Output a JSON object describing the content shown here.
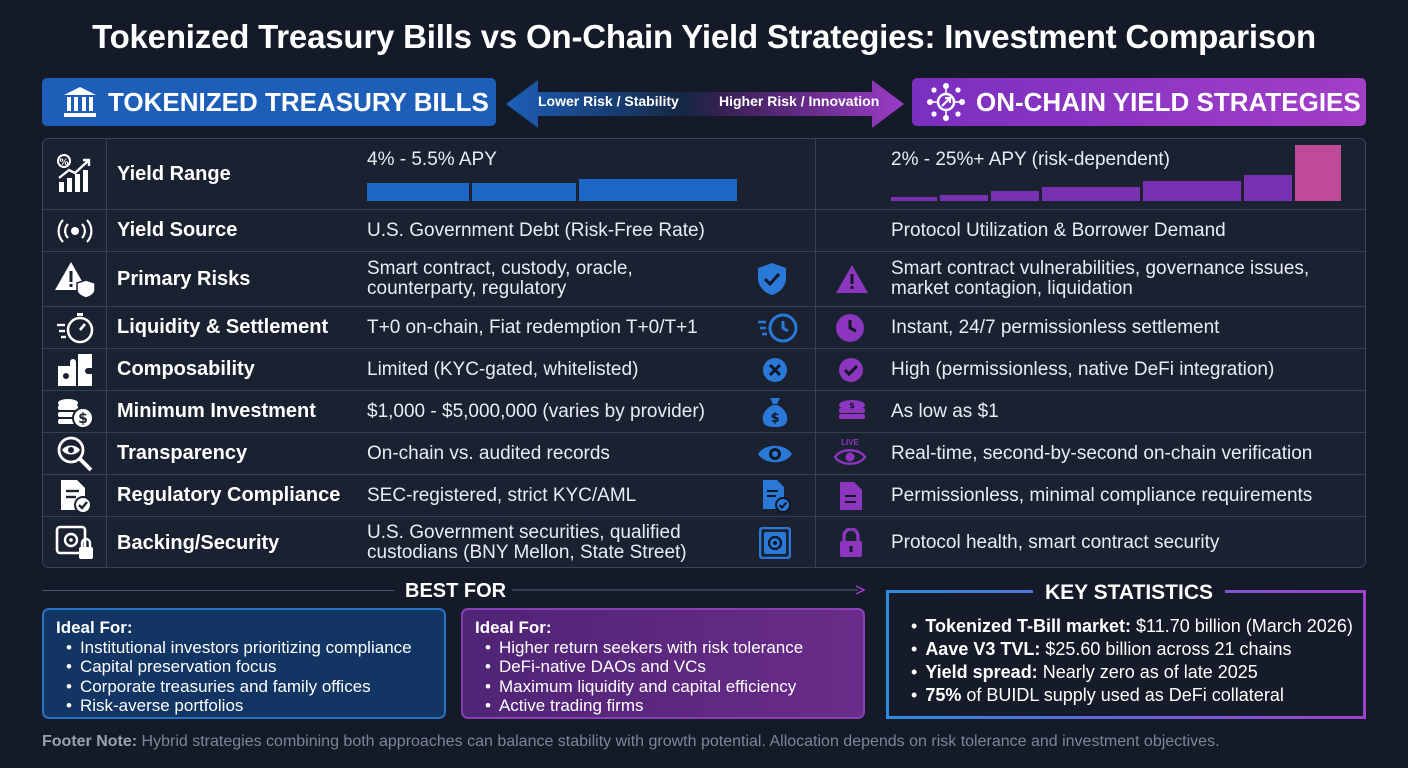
{
  "title": "Tokenized Treasury Bills vs On-Chain Yield Strategies: Investment Comparison",
  "header": {
    "left": "TOKENIZED TREASURY BILLS",
    "right": "ON-CHAIN YIELD STRATEGIES",
    "arrow_left": "Lower Risk / Stability",
    "arrow_right": "Higher Risk / Innovation",
    "left_icon": "bank-icon",
    "right_icon": "network-icon"
  },
  "rows": [
    {
      "label": "Yield Range",
      "icon": "yield-chart-icon",
      "left": "4% - 5.5% APY",
      "right": "2% - 25%+ APY (risk-dependent)"
    },
    {
      "label": "Yield Source",
      "icon": "broadcast-icon",
      "left": "U.S. Government Debt (Risk-Free Rate)",
      "right": "Protocol Utilization & Borrower Demand"
    },
    {
      "label": "Primary Risks",
      "icon": "warning-shield-icon",
      "left": "Smart contract, custody, oracle,",
      "left2": "counterparty, regulatory",
      "right": "Smart contract vulnerabilities, governance issues,",
      "right2": "market contagion, liquidation"
    },
    {
      "label": "Liquidity & Settlement",
      "icon": "stopwatch-icon",
      "left": "T+0 on-chain, Fiat redemption T+0/T+1",
      "right": "Instant, 24/7 permissionless settlement"
    },
    {
      "label": "Composability",
      "icon": "puzzle-icon",
      "left": "Limited (KYC-gated, whitelisted)",
      "right": "High (permissionless, native DeFi integration)"
    },
    {
      "label": "Minimum Investment",
      "icon": "coins-icon",
      "left": "$1,000 - $5,000,000 (varies by provider)",
      "right": "As low as $1"
    },
    {
      "label": "Transparency",
      "icon": "magnifier-eye-icon",
      "left": "On-chain vs. audited records",
      "right": "Real-time, second-by-second on-chain verification",
      "live": "LIVE"
    },
    {
      "label": "Regulatory Compliance",
      "icon": "document-check-icon",
      "left": "SEC-registered, strict KYC/AML",
      "right": "Permissionless, minimal compliance requirements"
    },
    {
      "label": "Backing/Security",
      "icon": "safe-lock-icon",
      "left": "U.S. Government securities, qualified",
      "left2": "custodians (BNY Mellon, State Street)",
      "right": "Protocol health, smart contract security"
    }
  ],
  "yield_bars": {
    "left": [
      1,
      2,
      3
    ],
    "right": [
      1,
      2,
      3,
      4,
      5,
      6,
      7,
      8
    ]
  },
  "best_for": {
    "title": "BEST FOR",
    "left_heading": "Ideal For:",
    "left_items": [
      "Institutional investors prioritizing compliance",
      "Capital preservation focus",
      "Corporate treasuries and family offices",
      "Risk-averse portfolios"
    ],
    "right_heading": "Ideal For:",
    "right_items": [
      "Higher return seekers with risk tolerance",
      "DeFi-native DAOs and VCs",
      "Maximum liquidity and capital efficiency",
      "Active trading firms"
    ]
  },
  "key_stats": {
    "title": "KEY STATISTICS",
    "items": [
      {
        "bold": "Tokenized T-Bill market:",
        "text": " $11.70 billion (March 2026)"
      },
      {
        "bold": "Aave V3 TVL:",
        "text": " $25.60 billion across 21 chains"
      },
      {
        "bold": "Yield spread:",
        "text": " Nearly zero as of late 2025"
      },
      {
        "bold": "75%",
        "text": " of BUIDL supply used as DeFi collateral"
      }
    ]
  },
  "footer": {
    "label": "Footer Note:",
    "text": " Hybrid strategies combining both approaches can balance stability with growth potential. Allocation depends on risk tolerance and investment objectives."
  },
  "colors": {
    "blue": "#1d5fb8",
    "purple": "#8a3cc4",
    "bg": "#141a27"
  }
}
